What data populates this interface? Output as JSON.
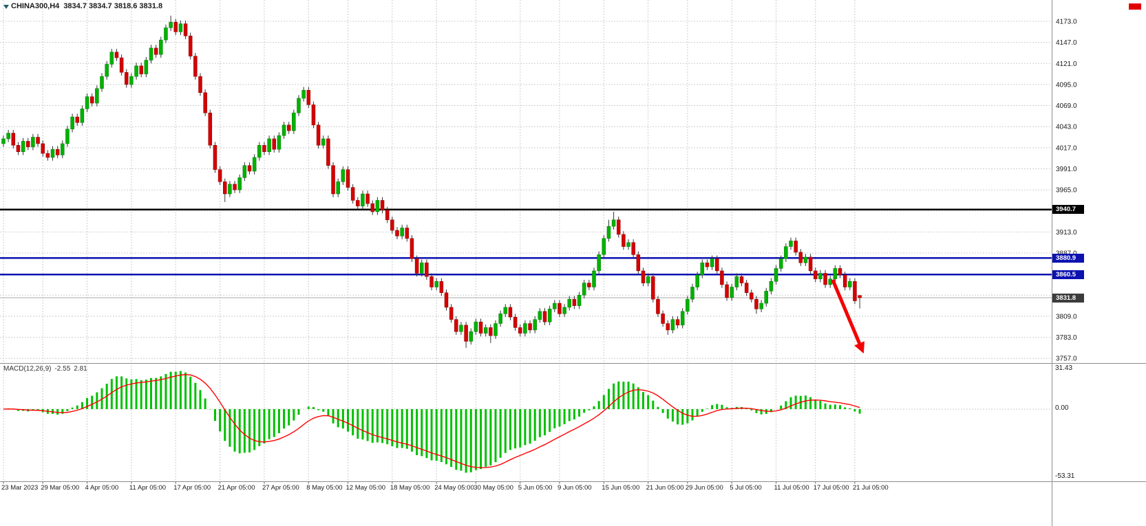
{
  "header": {
    "symbol_timeframe": "CHINA300,H4",
    "ohlc_text": "3834.7 3834.7 3818.6 3831.8"
  },
  "colors": {
    "background": "#ffffff",
    "grid": "#cdcdcd",
    "bull": "#00b200",
    "bull_border": "#007a00",
    "bear": "#d40000",
    "bear_border": "#8e0000",
    "wick": "#333333",
    "macd_hist": "#00c000",
    "macd_signal": "#ff0000",
    "hline_black": "#000000",
    "hline_blue": "#0c12b0",
    "bid_line": "#aaaaaa",
    "arrow": "#f40000",
    "axis_text": "#1a1a1a",
    "separator": "#8c8c8c"
  },
  "chart_data": {
    "type": "candlestick",
    "symbol": "CHINA300",
    "timeframe": "H4",
    "grid": true,
    "current_bar": {
      "open": "3834.7",
      "high": "3834.7",
      "low": "3818.6",
      "close": "3831.8"
    },
    "price_axis": {
      "min": 3757,
      "max": 4173,
      "step": 26,
      "labels": [
        {
          "text": "4173.0",
          "price": 4173
        },
        {
          "text": "4147.0",
          "price": 4147
        },
        {
          "text": "4121.0",
          "price": 4121
        },
        {
          "text": "4095.0",
          "price": 4095
        },
        {
          "text": "4069.0",
          "price": 4069
        },
        {
          "text": "4043.0",
          "price": 4043
        },
        {
          "text": "4017.0",
          "price": 4017
        },
        {
          "text": "3991.0",
          "price": 3991
        },
        {
          "text": "3965.0",
          "price": 3965
        },
        {
          "text": "3913.0",
          "price": 3913
        },
        {
          "text": "3887.0",
          "price": 3887
        },
        {
          "text": "3809.0",
          "price": 3809
        },
        {
          "text": "3783.0",
          "price": 3783
        },
        {
          "text": "3757.0",
          "price": 3757
        }
      ],
      "tags": [
        {
          "text": "3940.7",
          "price": 3940.7,
          "bg": "#000000"
        },
        {
          "text": "3880.9",
          "price": 3880.9,
          "bg": "#0c12b0"
        },
        {
          "text": "3860.5",
          "price": 3860.5,
          "bg": "#0c12b0"
        },
        {
          "text": "3831.8",
          "price": 3831.8,
          "bg": "#3c3c3c"
        }
      ]
    },
    "hlines": [
      {
        "price": 3940.7,
        "color": "#000000",
        "width": 2.5
      },
      {
        "price": 3880.9,
        "color": "#0c12b0",
        "width": 2.5
      },
      {
        "price": 3860.5,
        "color": "#0c12b0",
        "width": 2.5
      }
    ],
    "bid_line": 3831.8,
    "time_labels": [
      {
        "text": "23 Mar 2023",
        "bar": 0
      },
      {
        "text": "29 Mar 05:00",
        "bar": 8
      },
      {
        "text": "4 Apr 05:00",
        "bar": 17
      },
      {
        "text": "11 Apr 05:00",
        "bar": 26
      },
      {
        "text": "17 Apr 05:00",
        "bar": 35
      },
      {
        "text": "21 Apr 05:00",
        "bar": 44
      },
      {
        "text": "27 Apr 05:00",
        "bar": 53
      },
      {
        "text": "8 May 05:00",
        "bar": 62
      },
      {
        "text": "12 May 05:00",
        "bar": 70
      },
      {
        "text": "18 May 05:00",
        "bar": 79
      },
      {
        "text": "24 May 05:00",
        "bar": 88
      },
      {
        "text": "30 May 05:00",
        "bar": 96
      },
      {
        "text": "5 Jun 05:00",
        "bar": 105
      },
      {
        "text": "9 Jun 05:00",
        "bar": 113
      },
      {
        "text": "15 Jun 05:00",
        "bar": 122
      },
      {
        "text": "21 Jun 05:00",
        "bar": 131
      },
      {
        "text": "29 Jun 05:00",
        "bar": 139
      },
      {
        "text": "5 Jul 05:00",
        "bar": 148
      },
      {
        "text": "11 Jul 05:00",
        "bar": 157
      },
      {
        "text": "17 Jul 05:00",
        "bar": 165
      },
      {
        "text": "21 Jul 05:00",
        "bar": 173
      }
    ],
    "candles": [
      [
        4022,
        4032,
        4018,
        4028
      ],
      [
        4028,
        4039,
        4024,
        4035
      ],
      [
        4035,
        4039,
        4016,
        4020
      ],
      [
        4020,
        4024,
        4008,
        4012
      ],
      [
        4012,
        4029,
        4008,
        4025
      ],
      [
        4025,
        4029,
        4014,
        4018
      ],
      [
        4018,
        4034,
        4014,
        4030
      ],
      [
        4030,
        4034,
        4018,
        4022
      ],
      [
        4022,
        4026,
        4006,
        4010
      ],
      [
        4010,
        4014,
        4001,
        4005
      ],
      [
        4005,
        4019,
        4001,
        4015
      ],
      [
        4015,
        4019,
        4004,
        4008
      ],
      [
        4008,
        4026,
        4004,
        4022
      ],
      [
        4022,
        4044,
        4018,
        4040
      ],
      [
        4040,
        4059,
        4036,
        4055
      ],
      [
        4055,
        4059,
        4044,
        4048
      ],
      [
        4048,
        4069,
        4044,
        4065
      ],
      [
        4065,
        4084,
        4061,
        4080
      ],
      [
        4080,
        4084,
        4068,
        4072
      ],
      [
        4072,
        4094,
        4068,
        4090
      ],
      [
        4090,
        4109,
        4086,
        4105
      ],
      [
        4105,
        4124,
        4101,
        4120
      ],
      [
        4120,
        4139,
        4116,
        4135
      ],
      [
        4135,
        4139,
        4124,
        4128
      ],
      [
        4128,
        4132,
        4106,
        4110
      ],
      [
        4110,
        4114,
        4091,
        4095
      ],
      [
        4095,
        4109,
        4091,
        4105
      ],
      [
        4105,
        4122,
        4101,
        4118
      ],
      [
        4118,
        4122,
        4104,
        4108
      ],
      [
        4108,
        4129,
        4104,
        4125
      ],
      [
        4125,
        4144,
        4121,
        4140
      ],
      [
        4140,
        4144,
        4128,
        4132
      ],
      [
        4132,
        4154,
        4128,
        4150
      ],
      [
        4150,
        4169,
        4146,
        4165
      ],
      [
        4165,
        4180,
        4161,
        4172
      ],
      [
        4172,
        4176,
        4156,
        4160
      ],
      [
        4160,
        4174,
        4156,
        4170
      ],
      [
        4170,
        4174,
        4151,
        4155
      ],
      [
        4155,
        4159,
        4126,
        4130
      ],
      [
        4130,
        4134,
        4101,
        4105
      ],
      [
        4105,
        4109,
        4081,
        4085
      ],
      [
        4085,
        4089,
        4056,
        4060
      ],
      [
        4060,
        4064,
        4016,
        4020
      ],
      [
        4020,
        4024,
        3986,
        3990
      ],
      [
        3990,
        3994,
        3971,
        3975
      ],
      [
        3975,
        3979,
        3950,
        3960
      ],
      [
        3960,
        3976,
        3956,
        3972
      ],
      [
        3972,
        3976,
        3961,
        3965
      ],
      [
        3965,
        3984,
        3961,
        3980
      ],
      [
        3980,
        3999,
        3976,
        3995
      ],
      [
        3995,
        3999,
        3984,
        3988
      ],
      [
        3988,
        4009,
        3984,
        4005
      ],
      [
        4005,
        4024,
        4001,
        4020
      ],
      [
        4020,
        4024,
        4008,
        4012
      ],
      [
        4012,
        4032,
        4008,
        4028
      ],
      [
        4028,
        4032,
        4011,
        4015
      ],
      [
        4015,
        4036,
        4011,
        4032
      ],
      [
        4032,
        4049,
        4028,
        4045
      ],
      [
        4045,
        4049,
        4034,
        4038
      ],
      [
        4038,
        4064,
        4034,
        4060
      ],
      [
        4060,
        4082,
        4056,
        4078
      ],
      [
        4078,
        4092,
        4074,
        4088
      ],
      [
        4088,
        4092,
        4066,
        4070
      ],
      [
        4070,
        4074,
        4041,
        4045
      ],
      [
        4045,
        4049,
        4016,
        4020
      ],
      [
        4020,
        4032,
        4016,
        4028
      ],
      [
        4028,
        4032,
        3991,
        3995
      ],
      [
        3995,
        3999,
        3956,
        3960
      ],
      [
        3960,
        3979,
        3956,
        3975
      ],
      [
        3975,
        3994,
        3971,
        3990
      ],
      [
        3990,
        3994,
        3964,
        3968
      ],
      [
        3968,
        3972,
        3948,
        3952
      ],
      [
        3952,
        3956,
        3941,
        3945
      ],
      [
        3945,
        3964,
        3941,
        3960
      ],
      [
        3960,
        3964,
        3944,
        3948
      ],
      [
        3948,
        3952,
        3934,
        3938
      ],
      [
        3938,
        3956,
        3934,
        3952
      ],
      [
        3952,
        3956,
        3936,
        3940
      ],
      [
        3940,
        3944,
        3924,
        3928
      ],
      [
        3928,
        3932,
        3911,
        3915
      ],
      [
        3915,
        3919,
        3904,
        3908
      ],
      [
        3908,
        3922,
        3904,
        3918
      ],
      [
        3918,
        3922,
        3901,
        3905
      ],
      [
        3905,
        3909,
        3876,
        3880
      ],
      [
        3880,
        3884,
        3858,
        3862
      ],
      [
        3862,
        3879,
        3858,
        3875
      ],
      [
        3875,
        3879,
        3854,
        3858
      ],
      [
        3858,
        3862,
        3841,
        3845
      ],
      [
        3845,
        3856,
        3841,
        3852
      ],
      [
        3852,
        3856,
        3834,
        3838
      ],
      [
        3838,
        3842,
        3816,
        3820
      ],
      [
        3820,
        3824,
        3801,
        3805
      ],
      [
        3805,
        3809,
        3786,
        3790
      ],
      [
        3790,
        3802,
        3786,
        3798
      ],
      [
        3798,
        3802,
        3770,
        3778
      ],
      [
        3778,
        3794,
        3774,
        3790
      ],
      [
        3790,
        3806,
        3786,
        3802
      ],
      [
        3802,
        3806,
        3784,
        3788
      ],
      [
        3788,
        3799,
        3784,
        3795
      ],
      [
        3795,
        3799,
        3776,
        3785
      ],
      [
        3785,
        3804,
        3781,
        3800
      ],
      [
        3800,
        3816,
        3796,
        3812
      ],
      [
        3812,
        3824,
        3808,
        3820
      ],
      [
        3820,
        3824,
        3804,
        3808
      ],
      [
        3808,
        3812,
        3791,
        3795
      ],
      [
        3795,
        3799,
        3784,
        3788
      ],
      [
        3788,
        3804,
        3784,
        3800
      ],
      [
        3800,
        3804,
        3788,
        3792
      ],
      [
        3792,
        3809,
        3788,
        3805
      ],
      [
        3805,
        3819,
        3801,
        3815
      ],
      [
        3815,
        3819,
        3798,
        3802
      ],
      [
        3802,
        3822,
        3798,
        3818
      ],
      [
        3818,
        3829,
        3814,
        3825
      ],
      [
        3825,
        3829,
        3808,
        3812
      ],
      [
        3812,
        3824,
        3808,
        3820
      ],
      [
        3820,
        3834,
        3816,
        3830
      ],
      [
        3830,
        3834,
        3818,
        3822
      ],
      [
        3822,
        3839,
        3818,
        3835
      ],
      [
        3835,
        3854,
        3831,
        3850
      ],
      [
        3850,
        3854,
        3841,
        3845
      ],
      [
        3845,
        3869,
        3841,
        3865
      ],
      [
        3865,
        3889,
        3861,
        3885
      ],
      [
        3885,
        3909,
        3881,
        3905
      ],
      [
        3905,
        3928,
        3901,
        3920
      ],
      [
        3920,
        3938,
        3916,
        3928
      ],
      [
        3928,
        3932,
        3906,
        3910
      ],
      [
        3910,
        3914,
        3891,
        3895
      ],
      [
        3895,
        3904,
        3891,
        3900
      ],
      [
        3900,
        3904,
        3881,
        3885
      ],
      [
        3885,
        3889,
        3861,
        3865
      ],
      [
        3865,
        3869,
        3846,
        3850
      ],
      [
        3850,
        3862,
        3846,
        3858
      ],
      [
        3858,
        3862,
        3826,
        3830
      ],
      [
        3830,
        3834,
        3808,
        3812
      ],
      [
        3812,
        3816,
        3796,
        3800
      ],
      [
        3800,
        3804,
        3786,
        3792
      ],
      [
        3792,
        3809,
        3788,
        3805
      ],
      [
        3805,
        3809,
        3794,
        3798
      ],
      [
        3798,
        3819,
        3794,
        3815
      ],
      [
        3815,
        3834,
        3811,
        3830
      ],
      [
        3830,
        3849,
        3826,
        3845
      ],
      [
        3845,
        3864,
        3841,
        3860
      ],
      [
        3860,
        3879,
        3856,
        3875
      ],
      [
        3875,
        3879,
        3866,
        3870
      ],
      [
        3870,
        3884,
        3866,
        3880
      ],
      [
        3880,
        3884,
        3861,
        3865
      ],
      [
        3865,
        3869,
        3844,
        3848
      ],
      [
        3848,
        3852,
        3828,
        3832
      ],
      [
        3832,
        3849,
        3828,
        3845
      ],
      [
        3845,
        3862,
        3841,
        3858
      ],
      [
        3858,
        3862,
        3846,
        3850
      ],
      [
        3850,
        3854,
        3834,
        3838
      ],
      [
        3838,
        3842,
        3826,
        3830
      ],
      [
        3830,
        3834,
        3812,
        3818
      ],
      [
        3818,
        3829,
        3814,
        3825
      ],
      [
        3825,
        3844,
        3821,
        3840
      ],
      [
        3840,
        3856,
        3836,
        3852
      ],
      [
        3852,
        3872,
        3848,
        3868
      ],
      [
        3868,
        3884,
        3864,
        3880
      ],
      [
        3880,
        3899,
        3876,
        3895
      ],
      [
        3895,
        3906,
        3891,
        3902
      ],
      [
        3902,
        3906,
        3884,
        3888
      ],
      [
        3888,
        3892,
        3871,
        3875
      ],
      [
        3875,
        3886,
        3871,
        3882
      ],
      [
        3882,
        3886,
        3861,
        3865
      ],
      [
        3865,
        3869,
        3851,
        3855
      ],
      [
        3855,
        3866,
        3851,
        3862
      ],
      [
        3862,
        3866,
        3844,
        3848
      ],
      [
        3848,
        3859,
        3844,
        3855
      ],
      [
        3855,
        3872,
        3851,
        3868
      ],
      [
        3868,
        3872,
        3856,
        3860
      ],
      [
        3860,
        3864,
        3841,
        3845
      ],
      [
        3845,
        3856,
        3841,
        3852
      ],
      [
        3852,
        3856,
        3824,
        3828
      ],
      [
        3834.7,
        3834.7,
        3818.6,
        3831.8
      ]
    ],
    "macd": {
      "label": "MACD(12,26,9)",
      "main_value": "-2.55",
      "signal_value": "2.81",
      "params": [
        12,
        26,
        9
      ],
      "axis_labels": [
        "31.43",
        "0.00",
        "-53.31"
      ],
      "range": [
        -53.31,
        31.43
      ]
    },
    "arrow": {
      "description": "red downward trend arrow",
      "from_bar": 168.5,
      "from_price": 3854,
      "to_bar": 174.8,
      "to_price": 3763,
      "color": "#f40000"
    }
  }
}
